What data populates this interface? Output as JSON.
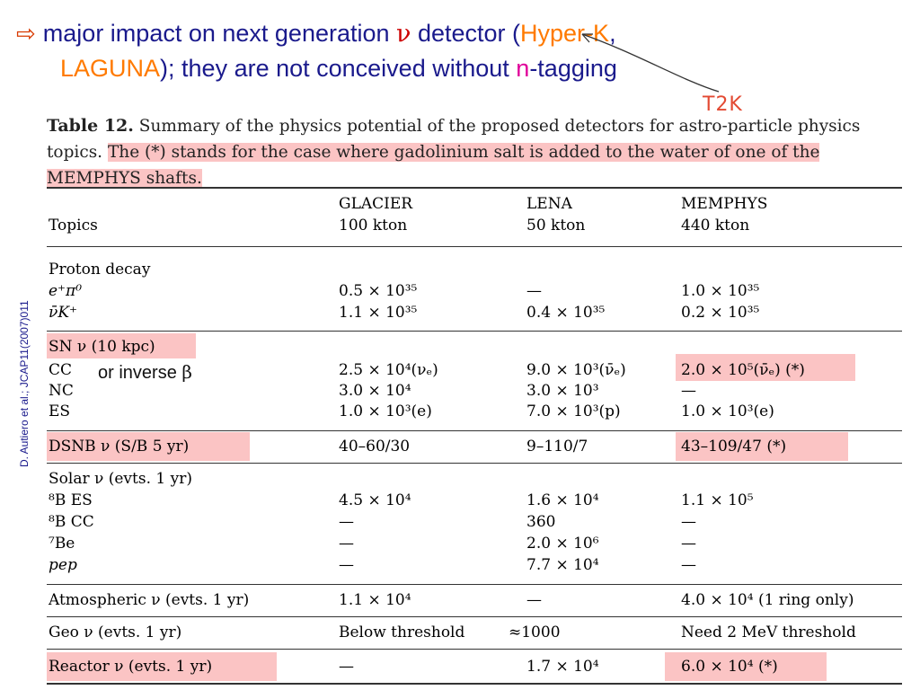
{
  "header": {
    "line1_a": "major impact on next generation",
    "nu": "ν",
    "line1_b": "detector  (",
    "hyperk": "Hyper-K",
    "comma": ",",
    "laguna": "LAGUNA",
    "line2_a": ");  they are not conceived without",
    "n": "n",
    "line2_b": "-tagging"
  },
  "annotation_t2k": "T2K",
  "side_citation": "D. Autiero et al.; JCAP11(2007)011",
  "inverse_note": {
    "text": "or inverse",
    "beta": "β"
  },
  "caption": {
    "label": "Table 12.",
    "part1": "Summary of the physics potential of the proposed detectors for astro-particle physics topics.",
    "part2": "The (*) stands for the case where gadolinium salt is added to the water of one of the MEMPHYS shafts."
  },
  "table": {
    "headers": {
      "topics": "Topics",
      "glacier": "GLACIER",
      "glacier_mass": "100 kton",
      "lena": "LENA",
      "lena_mass": "50 kton",
      "memphys": "MEMPHYS",
      "memphys_mass": "440 kton"
    },
    "proton": {
      "title": "Proton decay",
      "r1": [
        "e⁺π⁰",
        "0.5 × 10³⁵",
        "—",
        "1.0 × 10³⁵"
      ],
      "r2": [
        "ν̄K⁺",
        "1.1 × 10³⁵",
        "0.4 × 10³⁵",
        "0.2 × 10³⁵"
      ]
    },
    "sn": {
      "title": "SN ν (10 kpc)",
      "r1": [
        "CC",
        "2.5 × 10⁴(νₑ)",
        "9.0 × 10³(ν̄ₑ)",
        "2.0 × 10⁵(ν̄ₑ) (*)"
      ],
      "r2": [
        "NC",
        "3.0 × 10⁴",
        "3.0 × 10³",
        "—"
      ],
      "r3": [
        "ES",
        "1.0 × 10³(e)",
        "7.0 × 10³(p)",
        "1.0 × 10³(e)"
      ]
    },
    "dsnb": [
      "DSNB ν (S/B 5 yr)",
      "40–60/30",
      "9–110/7",
      "43–109/47 (*)"
    ],
    "solar": {
      "title": "Solar ν (evts. 1 yr)",
      "r1": [
        "⁸B ES",
        "4.5 × 10⁴",
        "1.6 × 10⁴",
        "1.1 × 10⁵"
      ],
      "r2": [
        "⁸B CC",
        "—",
        "360",
        "—"
      ],
      "r3": [
        "⁷Be",
        "—",
        "2.0 × 10⁶",
        "—"
      ],
      "r4": [
        "pep",
        "—",
        "7.7 × 10⁴",
        "—"
      ]
    },
    "atmo": [
      "Atmospheric ν (evts. 1 yr)",
      "1.1 × 10⁴",
      "—",
      "4.0 × 10⁴ (1 ring only)"
    ],
    "geo": [
      "Geo ν (evts. 1 yr)",
      "Below threshold",
      "≈1000",
      "Need 2 MeV threshold"
    ],
    "reactor": [
      "Reactor ν (evts. 1 yr)",
      "—",
      "1.7 × 10⁴",
      "6.0 × 10⁴ (*)"
    ]
  }
}
